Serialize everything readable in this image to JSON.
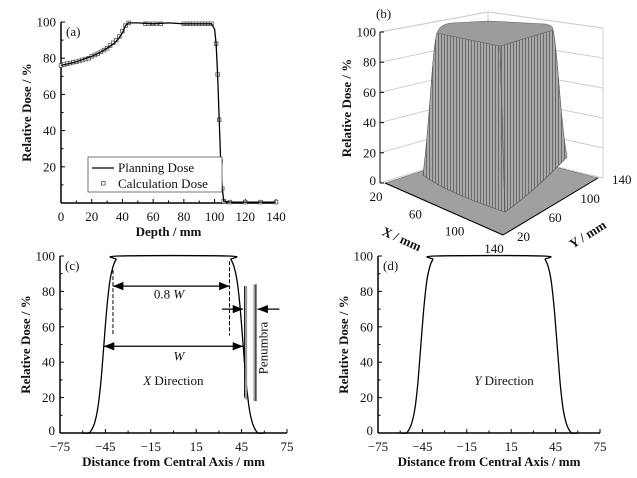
{
  "chart_data": [
    {
      "panel": "(a)",
      "type": "line",
      "xlabel": "Depth / mm",
      "ylabel": "Relative Dose / %",
      "xlim": [
        0,
        140
      ],
      "ylim": [
        0,
        100
      ],
      "xticks": [
        "0",
        "20",
        "40",
        "60",
        "80",
        "100",
        "120",
        "140"
      ],
      "yticks": [
        "20",
        "40",
        "60",
        "80",
        "100"
      ],
      "legend": "bottom-left",
      "series": [
        {
          "name": "Planning Dose",
          "style": "solid-line",
          "x": [
            0,
            5,
            10,
            15,
            20,
            25,
            30,
            35,
            38,
            40,
            42,
            44,
            50,
            60,
            70,
            80,
            90,
            98,
            100,
            101,
            102,
            103,
            104,
            105,
            106,
            110,
            120,
            130,
            140
          ],
          "y": [
            76,
            77,
            78,
            79.5,
            81,
            83,
            85.5,
            88.5,
            91.5,
            94,
            98,
            99.5,
            99.5,
            99,
            99.5,
            99,
            99,
            99,
            96,
            88,
            71,
            46,
            23,
            8,
            1,
            0.5,
            0.5,
            0.5,
            0.5
          ]
        },
        {
          "name": "Calculation Dose",
          "style": "open-square-markers",
          "x": [
            0,
            2,
            4,
            6,
            8,
            10,
            12,
            14,
            16,
            18,
            20,
            22,
            24,
            26,
            28,
            30,
            32,
            34,
            36,
            38,
            40,
            42,
            44,
            55,
            57,
            60,
            62,
            65,
            80,
            82,
            84,
            86,
            88,
            90,
            92,
            94,
            96,
            98,
            101,
            102,
            103,
            104,
            105,
            106,
            110,
            120,
            130,
            140
          ],
          "y": [
            76,
            76.5,
            77,
            77.3,
            77.8,
            78,
            78.5,
            79,
            79.5,
            80,
            81,
            81.8,
            82.5,
            83.5,
            84.5,
            85.5,
            87,
            88.5,
            90,
            92,
            95,
            98,
            99.5,
            99,
            99,
            99,
            99,
            99,
            99,
            99,
            99,
            99,
            99,
            99,
            99,
            99,
            99,
            99,
            88,
            71,
            46,
            23,
            8,
            1,
            0.5,
            0.5,
            0.5,
            0.5
          ]
        }
      ]
    },
    {
      "panel": "(b)",
      "type": "surface",
      "xlabel": "X / mm",
      "ylabel": "Y / mm",
      "zlabel": "Relative Dose / %",
      "xticks": [
        "20",
        "60",
        "100",
        "140"
      ],
      "yticks": [
        "20",
        "60",
        "100",
        "140"
      ],
      "zticks": [
        "0",
        "20",
        "40",
        "60",
        "80",
        "100"
      ],
      "zlim": [
        0,
        100
      ],
      "color": "#9a9a9a"
    },
    {
      "panel": "(c)",
      "type": "line",
      "xlabel": "Distance from Central Axis / mm",
      "ylabel": "Relative Dose / %",
      "xlim": [
        -75,
        75
      ],
      "ylim": [
        0,
        100
      ],
      "xticks": [
        "−75",
        "−45",
        "−15",
        "15",
        "45",
        "75"
      ],
      "yticks": [
        "0",
        "20",
        "40",
        "60",
        "80",
        "100"
      ],
      "series": [
        {
          "x": [
            -60,
            -56,
            -54,
            -52,
            -50,
            -48,
            -46,
            -44,
            -42,
            -40,
            -38,
            -36,
            36,
            38,
            40,
            42,
            44,
            46,
            48,
            50,
            52,
            54,
            56,
            60
          ],
          "y": [
            0,
            0,
            2,
            6,
            14,
            29,
            50,
            71,
            86,
            94,
            98,
            100,
            100,
            98,
            94,
            86,
            71,
            50,
            29,
            14,
            6,
            2,
            0,
            0
          ]
        }
      ],
      "annotations": {
        "label_08w": "0.8 ",
        "label_08w_italic": "W",
        "label_w": "W",
        "label_penumbra": "Penumbra",
        "direction_italic": "X",
        "direction_text": " Direction"
      }
    },
    {
      "panel": "(d)",
      "type": "line",
      "xlabel": "Distance from Central Axis / mm",
      "ylabel": "Relative Dose / %",
      "xlim": [
        -75,
        75
      ],
      "ylim": [
        0,
        100
      ],
      "xticks": [
        "−75",
        "−45",
        "−15",
        "15",
        "45",
        "75"
      ],
      "yticks": [
        "0",
        "20",
        "40",
        "60",
        "80",
        "100"
      ],
      "series": [
        {
          "x": [
            -60,
            -56,
            -54,
            -52,
            -50,
            -48,
            -46,
            -44,
            -42,
            -40,
            -38,
            -36,
            36,
            38,
            40,
            42,
            44,
            46,
            48,
            50,
            52,
            54,
            56,
            60
          ],
          "y": [
            0,
            0,
            2,
            6,
            14,
            29,
            50,
            71,
            86,
            94,
            98,
            100,
            100,
            98,
            94,
            86,
            71,
            50,
            29,
            14,
            6,
            2,
            0,
            0
          ]
        }
      ],
      "annotations": {
        "direction_italic": "Y",
        "direction_text": " Direction"
      }
    }
  ]
}
